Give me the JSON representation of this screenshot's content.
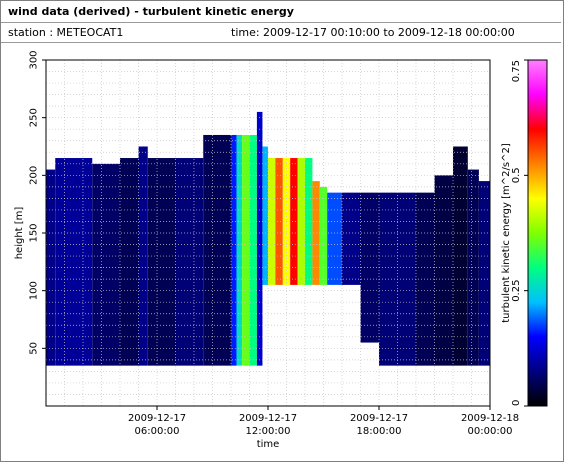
{
  "header": {
    "title": "wind data (derived) - turbulent kinetic energy",
    "station": "station : METEOCAT1",
    "time_range": "time: 2009-12-17 00:10:00 to 2009-12-18 00:00:00"
  },
  "chart_data": {
    "type": "heatmap",
    "xlabel": "time",
    "ylabel": "height [m]",
    "colorbar_label": "turbulent kinetic energy [m^2/s^2]",
    "x_unit": "hours since 2009-12-17 00:00",
    "xlim": [
      0,
      24
    ],
    "ylim": [
      0,
      300
    ],
    "y_ticks": [
      "50",
      "100",
      "150",
      "200",
      "250",
      "300"
    ],
    "x_ticks": [
      {
        "hour": 6,
        "line1": "2009-12-17",
        "line2": "06:00:00"
      },
      {
        "hour": 12,
        "line1": "2009-12-17",
        "line2": "12:00:00"
      },
      {
        "hour": 18,
        "line1": "2009-12-17",
        "line2": "18:00:00"
      },
      {
        "hour": 24,
        "line1": "2009-12-18",
        "line2": "00:00:00"
      }
    ],
    "grid": true,
    "colorbar": {
      "min": 0,
      "max": 0.75,
      "ticks": [
        "0",
        "0.25",
        "0.5",
        "0.75"
      ],
      "stops": [
        "#000000",
        "#000080",
        "#0000ff",
        "#00c0ff",
        "#00ff80",
        "#80ff00",
        "#ffff00",
        "#ff8000",
        "#ff0000",
        "#ff00ff",
        "#ff80ff"
      ]
    },
    "profiles": [
      {
        "t0": 0.0,
        "t1": 0.5,
        "ybot": 35,
        "ytop": 205,
        "tke": 0.08
      },
      {
        "t0": 0.5,
        "t1": 2.5,
        "ybot": 35,
        "ytop": 215,
        "tke": 0.09
      },
      {
        "t0": 2.5,
        "t1": 4.0,
        "ybot": 35,
        "ytop": 210,
        "tke": 0.06
      },
      {
        "t0": 4.0,
        "t1": 5.0,
        "ybot": 35,
        "ytop": 215,
        "tke": 0.05
      },
      {
        "t0": 5.0,
        "t1": 5.5,
        "ybot": 35,
        "ytop": 225,
        "tke": 0.08
      },
      {
        "t0": 5.5,
        "t1": 7.0,
        "ybot": 35,
        "ytop": 215,
        "tke": 0.05
      },
      {
        "t0": 7.0,
        "t1": 8.5,
        "ybot": 35,
        "ytop": 215,
        "tke": 0.07
      },
      {
        "t0": 8.5,
        "t1": 10.0,
        "ybot": 35,
        "ytop": 235,
        "tke": 0.05
      },
      {
        "t0": 10.0,
        "t1": 10.3,
        "ybot": 35,
        "ytop": 235,
        "tke": 0.16
      },
      {
        "t0": 10.3,
        "t1": 10.6,
        "ybot": 35,
        "ytop": 235,
        "tke": 0.26
      },
      {
        "t0": 10.6,
        "t1": 11.0,
        "ybot": 35,
        "ytop": 235,
        "tke": 0.36
      },
      {
        "t0": 11.0,
        "t1": 11.4,
        "ybot": 35,
        "ytop": 235,
        "tke": 0.3
      },
      {
        "t0": 11.4,
        "t1": 11.7,
        "ybot": 35,
        "ytop": 255,
        "tke": 0.12
      },
      {
        "t0": 11.7,
        "t1": 12.0,
        "ybot": 105,
        "ytop": 225,
        "tke": 0.22
      },
      {
        "t0": 12.0,
        "t1": 12.4,
        "ybot": 105,
        "ytop": 215,
        "tke": 0.42
      },
      {
        "t0": 12.4,
        "t1": 12.8,
        "ybot": 105,
        "ytop": 215,
        "tke": 0.55
      },
      {
        "t0": 12.8,
        "t1": 13.2,
        "ybot": 105,
        "ytop": 215,
        "tke": 0.45
      },
      {
        "t0": 13.2,
        "t1": 13.6,
        "ybot": 105,
        "ytop": 215,
        "tke": 0.6
      },
      {
        "t0": 13.6,
        "t1": 14.0,
        "ybot": 105,
        "ytop": 215,
        "tke": 0.4
      },
      {
        "t0": 14.0,
        "t1": 14.4,
        "ybot": 105,
        "ytop": 215,
        "tke": 0.3
      },
      {
        "t0": 14.4,
        "t1": 14.8,
        "ybot": 105,
        "ytop": 195,
        "tke": 0.52
      },
      {
        "t0": 14.8,
        "t1": 15.2,
        "ybot": 105,
        "ytop": 190,
        "tke": 0.35
      },
      {
        "t0": 15.2,
        "t1": 16.0,
        "ybot": 105,
        "ytop": 185,
        "tke": 0.18
      },
      {
        "t0": 16.0,
        "t1": 17.0,
        "ybot": 105,
        "ytop": 185,
        "tke": 0.08
      },
      {
        "t0": 17.0,
        "t1": 18.0,
        "ybot": 55,
        "ytop": 185,
        "tke": 0.06
      },
      {
        "t0": 18.0,
        "t1": 20.0,
        "ybot": 35,
        "ytop": 185,
        "tke": 0.07
      },
      {
        "t0": 20.0,
        "t1": 21.0,
        "ybot": 35,
        "ytop": 185,
        "tke": 0.05
      },
      {
        "t0": 21.0,
        "t1": 22.0,
        "ybot": 35,
        "ytop": 200,
        "tke": 0.04
      },
      {
        "t0": 22.0,
        "t1": 22.8,
        "ybot": 35,
        "ytop": 225,
        "tke": 0.03
      },
      {
        "t0": 22.8,
        "t1": 23.4,
        "ybot": 35,
        "ytop": 205,
        "tke": 0.05
      },
      {
        "t0": 23.4,
        "t1": 24.0,
        "ybot": 35,
        "ytop": 195,
        "tke": 0.07
      }
    ]
  }
}
